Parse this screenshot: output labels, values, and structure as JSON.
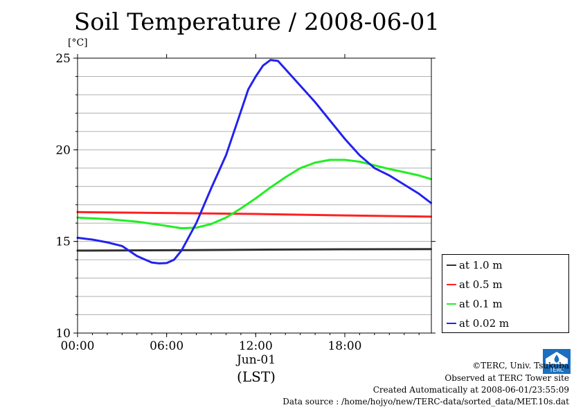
{
  "title": "Soil Temperature / 2008-06-01",
  "unit": "[°C]",
  "x_date_label": "Jun-01",
  "x_axis_label": "(LST)",
  "credits": {
    "copyright": "©TERC, Univ. Tsukuba",
    "observed": "Observed at TERC Tower site",
    "created": "Created Automatically at 2008-06-01/23:55:09",
    "source": "Data source : /home/hojyo/new/TERC-data/sorted_data/MET.10s.dat"
  },
  "logo_text": "TERC",
  "chart_data": {
    "type": "line",
    "title": "Soil Temperature / 2008-06-01",
    "ylabel": "[°C]",
    "xlabel": "(LST)",
    "xlim": [
      0,
      23.83
    ],
    "ylim": [
      10,
      25
    ],
    "x_ticks": [
      0,
      6,
      12,
      18
    ],
    "x_tick_labels": [
      "00:00",
      "06:00",
      "12:00",
      "18:00"
    ],
    "y_ticks": [
      10,
      15,
      20,
      25
    ],
    "y_minor_step": 1,
    "grid": true,
    "legend_position": "bottom-right outside",
    "series": [
      {
        "name": "at 1.0 m",
        "color": "#303030",
        "x": [
          0,
          6,
          12,
          18,
          23.8
        ],
        "y": [
          14.5,
          14.52,
          14.55,
          14.57,
          14.58
        ]
      },
      {
        "name": "at 0.5 m",
        "color": "#ff2020",
        "x": [
          0,
          6,
          12,
          18,
          23.8
        ],
        "y": [
          16.6,
          16.55,
          16.5,
          16.42,
          16.35
        ]
      },
      {
        "name": "at 0.1 m",
        "color": "#22ee22",
        "x": [
          0,
          2,
          4,
          6,
          7,
          8,
          9,
          10,
          11,
          12,
          13,
          14,
          15,
          16,
          17,
          18,
          19,
          20,
          21,
          22,
          23,
          23.8
        ],
        "y": [
          16.3,
          16.22,
          16.08,
          15.85,
          15.72,
          15.75,
          15.95,
          16.3,
          16.8,
          17.35,
          17.95,
          18.5,
          19.0,
          19.3,
          19.45,
          19.45,
          19.35,
          19.15,
          18.95,
          18.78,
          18.6,
          18.4
        ]
      },
      {
        "name": "at 0.02 m",
        "color": "#2222ee",
        "x": [
          0,
          1,
          2,
          3,
          4,
          5,
          5.5,
          6,
          6.5,
          7,
          8,
          9,
          10,
          11,
          11.5,
          12,
          12.5,
          13,
          13.5,
          14,
          15,
          16,
          17,
          18,
          19,
          20,
          21,
          22,
          23,
          23.8
        ],
        "y": [
          15.2,
          15.1,
          14.95,
          14.75,
          14.2,
          13.85,
          13.8,
          13.82,
          14.0,
          14.5,
          16.0,
          17.9,
          19.7,
          22.1,
          23.3,
          24.0,
          24.6,
          24.9,
          24.85,
          24.4,
          23.5,
          22.6,
          21.6,
          20.6,
          19.7,
          19.0,
          18.6,
          18.1,
          17.6,
          17.1
        ]
      }
    ]
  }
}
